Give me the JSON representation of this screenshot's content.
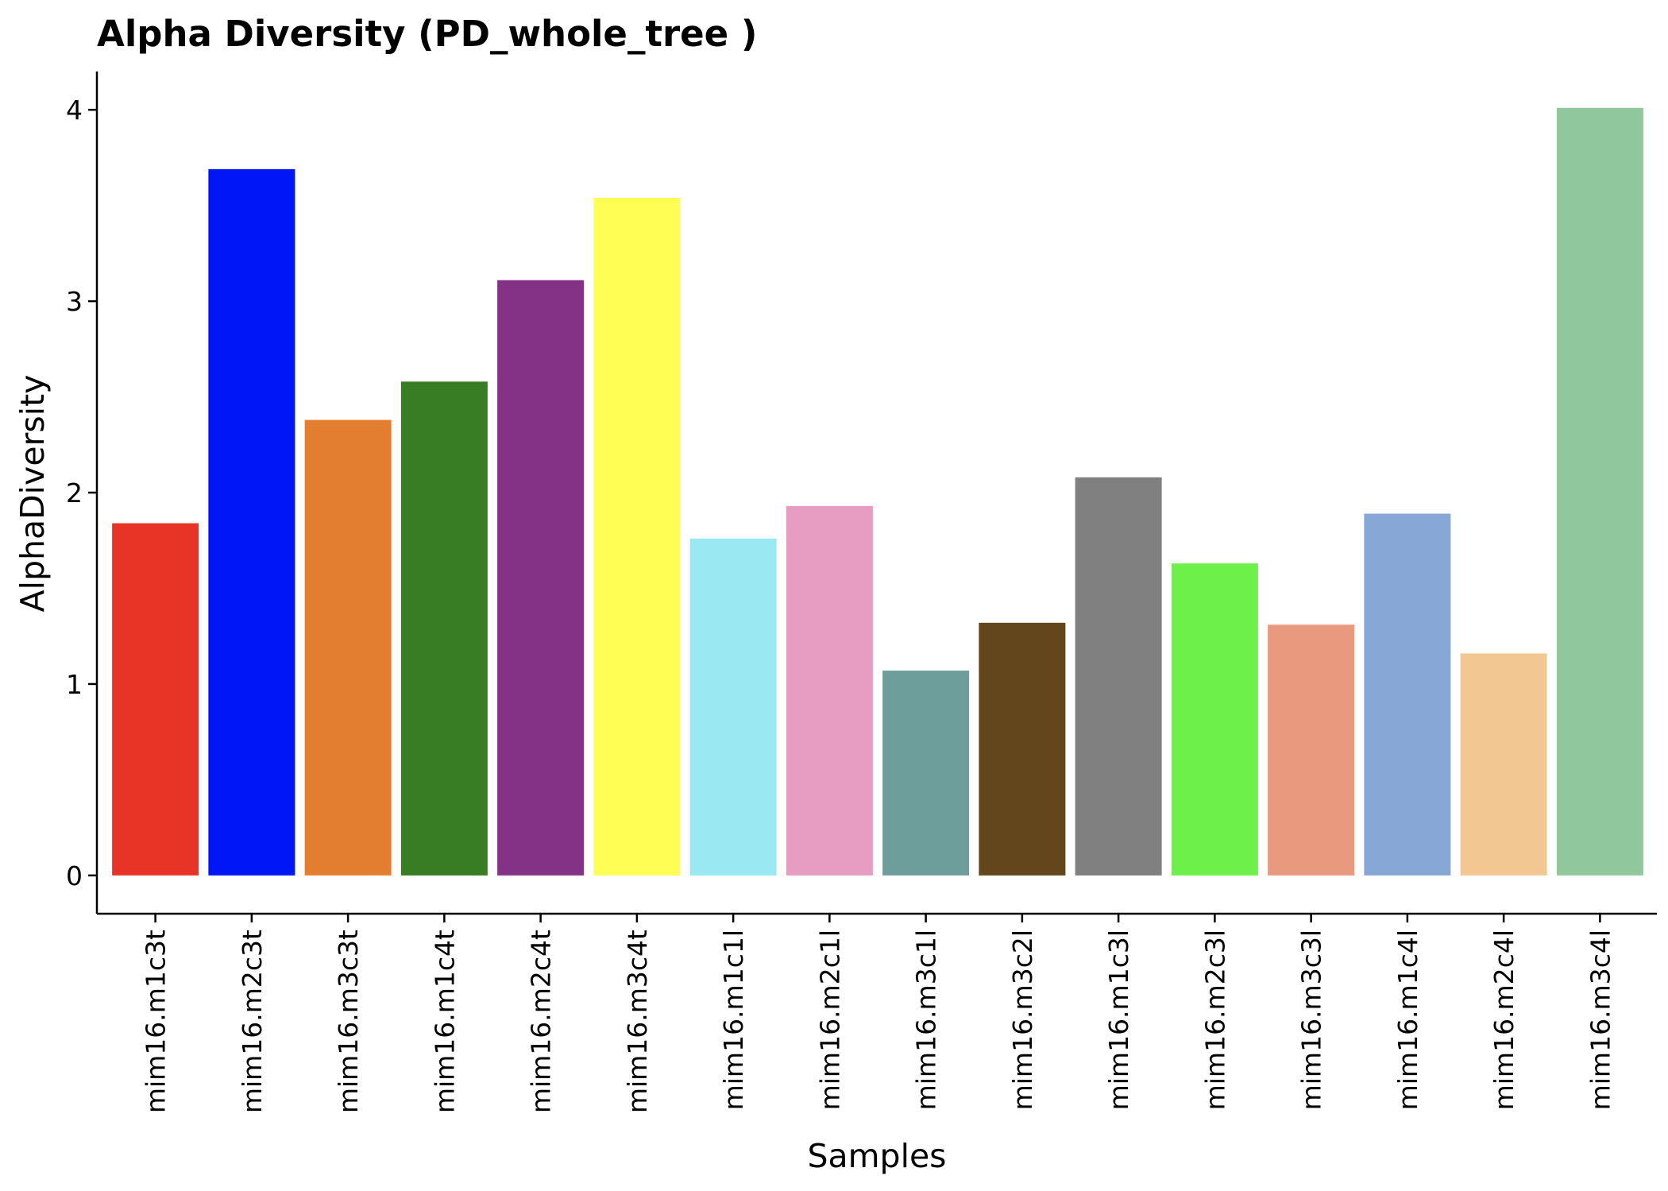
{
  "chart_data": {
    "type": "bar",
    "title": "Alpha Diversity (PD_whole_tree )",
    "xlabel": "Samples",
    "ylabel": "AlphaDiversity",
    "ylim": [
      -0.2,
      4.2
    ],
    "yticks": [
      0,
      1,
      2,
      3,
      4
    ],
    "grid": false,
    "legend": "none",
    "categories": [
      "mim16.m1c3t",
      "mim16.m2c3t",
      "mim16.m3c3t",
      "mim16.m1c4t",
      "mim16.m2c4t",
      "mim16.m3c4t",
      "mim16.m1c1l",
      "mim16.m2c1l",
      "mim16.m3c1l",
      "mim16.m3c2l",
      "mim16.m1c3l",
      "mim16.m2c3l",
      "mim16.m3c3l",
      "mim16.m1c4l",
      "mim16.m2c4l",
      "mim16.m3c4l"
    ],
    "values": [
      1.84,
      3.69,
      2.38,
      2.58,
      3.11,
      3.54,
      1.76,
      1.93,
      1.07,
      1.32,
      2.08,
      1.63,
      1.31,
      1.89,
      1.16,
      4.01
    ],
    "colors": [
      "#E83426",
      "#0016F6",
      "#E37E31",
      "#387D23",
      "#833286",
      "#FFFE54",
      "#9AE8F1",
      "#E79DC1",
      "#6E9E9C",
      "#63461C",
      "#808080",
      "#6DF14A",
      "#E99A7E",
      "#87A8D6",
      "#F2C792",
      "#90C79C"
    ]
  }
}
